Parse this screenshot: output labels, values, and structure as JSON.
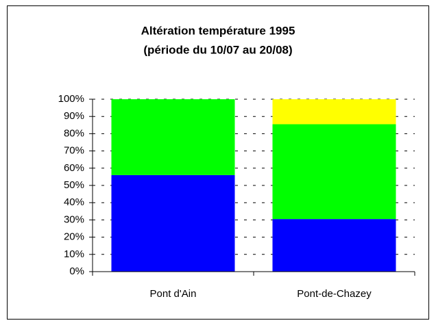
{
  "chart_data": {
    "type": "stacked_bar",
    "title": "Altération température 1995",
    "subtitle": "(période du 10/07 au 20/08)",
    "categories": [
      "Pont d'Ain",
      "Pont-de-Chazey"
    ],
    "series": [
      {
        "color": "#0000ff",
        "values": [
          56,
          30.5
        ]
      },
      {
        "color": "#00ff00",
        "values": [
          44,
          55
        ]
      },
      {
        "color": "#ffff00",
        "values": [
          0,
          14.5
        ]
      }
    ],
    "ylim": [
      0,
      100
    ],
    "yticks": [
      {
        "value": 0,
        "label": "0%"
      },
      {
        "value": 10,
        "label": "10%"
      },
      {
        "value": 20,
        "label": "20%"
      },
      {
        "value": 30,
        "label": "30%"
      },
      {
        "value": 40,
        "label": "40%"
      },
      {
        "value": 50,
        "label": "50%"
      },
      {
        "value": 60,
        "label": "60%"
      },
      {
        "value": 70,
        "label": "70%"
      },
      {
        "value": 80,
        "label": "80%"
      },
      {
        "value": 90,
        "label": "90%"
      },
      {
        "value": 100,
        "label": "100%"
      }
    ],
    "grid": true
  }
}
